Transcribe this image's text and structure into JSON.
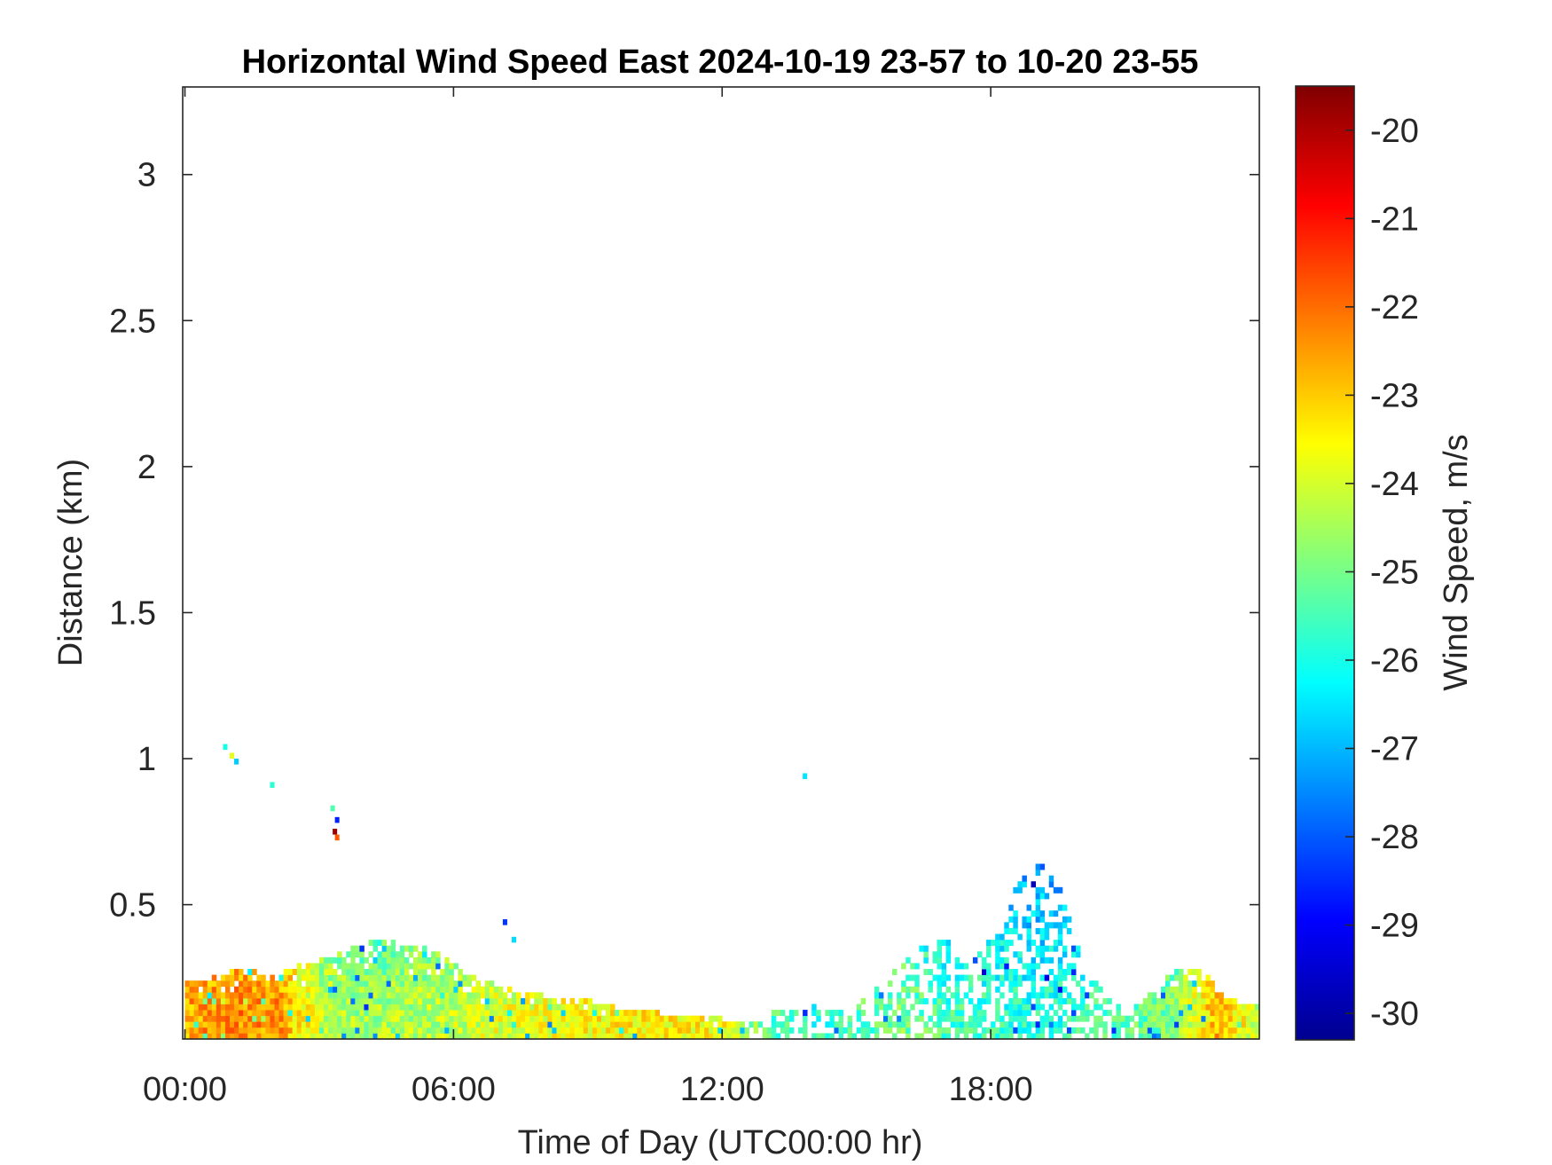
{
  "chart_data": {
    "type": "heatmap",
    "title": "Horizontal Wind Speed East 2024-10-19 23-57 to 10-20 23-55",
    "xlabel": "Time of Day (UTC00:00 hr)",
    "ylabel": "Distance (km)",
    "x_tick_labels": [
      "00:00",
      "06:00",
      "12:00",
      "18:00"
    ],
    "x_tick_values_hr": [
      0,
      6,
      12,
      18
    ],
    "xlim_hr": [
      -0.05,
      24
    ],
    "y_tick_labels": [
      "0.5",
      "1",
      "1.5",
      "2",
      "2.5",
      "3"
    ],
    "y_tick_values_km": [
      0.5,
      1,
      1.5,
      2,
      2.5,
      3
    ],
    "ylim_km": [
      0.04,
      3.3
    ],
    "colorbar": {
      "label": "Wind Speed, m/s",
      "colormap": "jet",
      "clim": [
        -30.3,
        -19.5
      ],
      "tick_labels": [
        "-20",
        "-21",
        "-22",
        "-23",
        "-24",
        "-25",
        "-26",
        "-27",
        "-28",
        "-29",
        "-30"
      ],
      "tick_values": [
        -20,
        -21,
        -22,
        -23,
        -24,
        -25,
        -26,
        -27,
        -28,
        -29,
        -30
      ]
    },
    "grid": false,
    "data_profile_top_km": [
      [
        0.0,
        0.22
      ],
      [
        0.5,
        0.24
      ],
      [
        1.0,
        0.26
      ],
      [
        1.5,
        0.26
      ],
      [
        2.0,
        0.25
      ],
      [
        2.5,
        0.28
      ],
      [
        3.0,
        0.3
      ],
      [
        3.5,
        0.33
      ],
      [
        4.0,
        0.36
      ],
      [
        4.5,
        0.37
      ],
      [
        5.0,
        0.36
      ],
      [
        5.5,
        0.33
      ],
      [
        6.0,
        0.28
      ],
      [
        6.5,
        0.24
      ],
      [
        7.0,
        0.21
      ],
      [
        7.5,
        0.19
      ],
      [
        8.0,
        0.18
      ],
      [
        8.5,
        0.17
      ],
      [
        9.0,
        0.16
      ],
      [
        9.5,
        0.14
      ],
      [
        10.0,
        0.13
      ],
      [
        10.5,
        0.12
      ],
      [
        11.0,
        0.12
      ],
      [
        11.5,
        0.11
      ],
      [
        12.0,
        0.1
      ],
      [
        12.5,
        0.1
      ],
      [
        13.0,
        0.12
      ],
      [
        13.5,
        0.15
      ],
      [
        14.0,
        0.16
      ],
      [
        14.5,
        0.14
      ],
      [
        15.0,
        0.16
      ],
      [
        15.5,
        0.22
      ],
      [
        16.0,
        0.3
      ],
      [
        16.5,
        0.38
      ],
      [
        17.0,
        0.36
      ],
      [
        17.5,
        0.3
      ],
      [
        18.0,
        0.4
      ],
      [
        18.5,
        0.55
      ],
      [
        19.0,
        0.66
      ],
      [
        19.5,
        0.55
      ],
      [
        20.0,
        0.3
      ],
      [
        20.5,
        0.2
      ],
      [
        21.0,
        0.12
      ],
      [
        21.5,
        0.18
      ],
      [
        22.0,
        0.26
      ],
      [
        22.5,
        0.28
      ],
      [
        23.0,
        0.22
      ],
      [
        23.5,
        0.16
      ],
      [
        24.0,
        0.14
      ]
    ],
    "data_profile_mean_ms": [
      [
        0.0,
        -22.6
      ],
      [
        1.0,
        -22.3
      ],
      [
        2.0,
        -22.4
      ],
      [
        3.0,
        -24.2
      ],
      [
        4.0,
        -24.6
      ],
      [
        5.0,
        -24.4
      ],
      [
        6.0,
        -24.2
      ],
      [
        7.0,
        -23.9
      ],
      [
        8.0,
        -23.8
      ],
      [
        9.0,
        -23.6
      ],
      [
        10.0,
        -23.5
      ],
      [
        11.0,
        -23.4
      ],
      [
        12.0,
        -23.7
      ],
      [
        13.0,
        -25.3
      ],
      [
        14.0,
        -25.8
      ],
      [
        15.0,
        -25.4
      ],
      [
        16.0,
        -25.0
      ],
      [
        17.0,
        -25.6
      ],
      [
        18.0,
        -25.7
      ],
      [
        19.0,
        -25.9
      ],
      [
        20.0,
        -25.7
      ],
      [
        21.0,
        -25.4
      ],
      [
        22.0,
        -24.9
      ],
      [
        23.0,
        -22.8
      ],
      [
        24.0,
        -24.2
      ]
    ],
    "isolated_echoes": [
      {
        "t": 0.85,
        "d": 1.03,
        "v": -26.0
      },
      {
        "t": 1.0,
        "d": 1.0,
        "v": -23.8
      },
      {
        "t": 1.1,
        "d": 0.98,
        "v": -26.8
      },
      {
        "t": 1.9,
        "d": 0.9,
        "v": -25.8
      },
      {
        "t": 3.25,
        "d": 0.82,
        "v": -25.4
      },
      {
        "t": 3.35,
        "d": 0.78,
        "v": -28.6
      },
      {
        "t": 3.3,
        "d": 0.74,
        "v": -19.8
      },
      {
        "t": 3.35,
        "d": 0.72,
        "v": -21.8
      },
      {
        "t": 7.1,
        "d": 0.43,
        "v": -28.4
      },
      {
        "t": 7.3,
        "d": 0.37,
        "v": -26.6
      },
      {
        "t": 13.8,
        "d": 0.93,
        "v": -26.5
      }
    ]
  }
}
